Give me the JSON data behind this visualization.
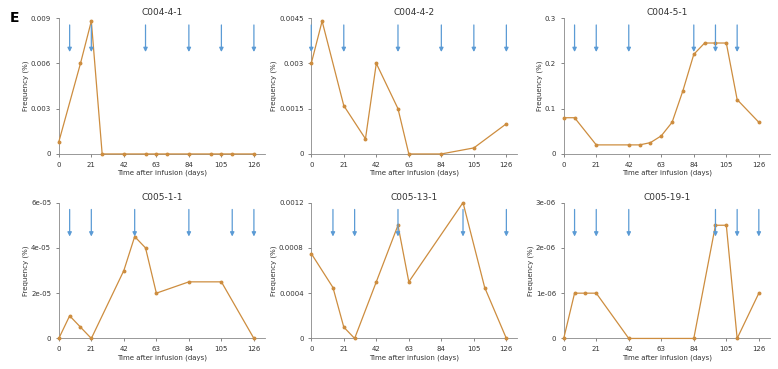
{
  "panels": [
    {
      "title": "C004-4-1",
      "x": [
        0,
        14,
        21,
        28,
        42,
        56,
        63,
        70,
        84,
        98,
        105,
        112,
        126
      ],
      "y": [
        0.0008,
        0.006,
        0.0088,
        0.0,
        0.0,
        0.0,
        0.0,
        0.0,
        0.0,
        0.0,
        0.0,
        0.0,
        0.0
      ],
      "arrows_x": [
        7,
        21,
        56,
        84,
        105,
        126
      ],
      "ylim": [
        0,
        0.009
      ],
      "yticks": [
        0,
        0.003,
        0.006,
        0.009
      ],
      "ytick_labels": [
        "0",
        "0.003",
        "0.006",
        "0.009"
      ]
    },
    {
      "title": "C004-4-2",
      "x": [
        0,
        7,
        21,
        35,
        42,
        56,
        63,
        84,
        105,
        126
      ],
      "y": [
        0.003,
        0.0044,
        0.0016,
        0.0005,
        0.003,
        0.0015,
        0.0,
        0.0,
        0.0002,
        0.001
      ],
      "arrows_x": [
        0,
        21,
        56,
        84,
        105,
        126
      ],
      "ylim": [
        0,
        0.0045
      ],
      "yticks": [
        0,
        0.0015,
        0.003,
        0.0045
      ],
      "ytick_labels": [
        "0",
        "0.0015",
        "0.003",
        "0.0045"
      ]
    },
    {
      "title": "C004-5-1",
      "x": [
        0,
        7,
        21,
        42,
        49,
        56,
        63,
        70,
        77,
        84,
        91,
        98,
        105,
        112,
        126
      ],
      "y": [
        0.08,
        0.08,
        0.02,
        0.02,
        0.02,
        0.025,
        0.04,
        0.07,
        0.14,
        0.22,
        0.245,
        0.245,
        0.245,
        0.12,
        0.07
      ],
      "arrows_x": [
        7,
        21,
        42,
        84,
        98,
        112
      ],
      "ylim": [
        0,
        0.3
      ],
      "yticks": [
        0,
        0.1,
        0.2,
        0.3
      ],
      "ytick_labels": [
        "0",
        "0.1",
        "0.2",
        "0.3"
      ]
    },
    {
      "title": "C005-1-1",
      "x": [
        0,
        7,
        14,
        21,
        42,
        49,
        56,
        63,
        84,
        105,
        126
      ],
      "y": [
        0.0,
        1e-05,
        5e-06,
        0.0,
        3e-05,
        4.5e-05,
        4e-05,
        2e-05,
        2.5e-05,
        2.5e-05,
        0.0
      ],
      "arrows_x": [
        7,
        21,
        49,
        84,
        112,
        126
      ],
      "ylim": [
        0,
        6e-05
      ],
      "yticks": [
        0,
        2e-05,
        4e-05,
        6e-05
      ],
      "ytick_labels": [
        "0",
        "2e-05",
        "4e-05",
        "6e-05"
      ]
    },
    {
      "title": "C005-13-1",
      "x": [
        0,
        14,
        21,
        28,
        42,
        56,
        63,
        98,
        112,
        126
      ],
      "y": [
        0.00075,
        0.00045,
        0.0001,
        0.0,
        0.0005,
        0.001,
        0.0005,
        0.0012,
        0.00045,
        0.0
      ],
      "arrows_x": [
        14,
        28,
        56,
        98,
        126
      ],
      "ylim": [
        0,
        0.0012
      ],
      "yticks": [
        0,
        0.0004,
        0.0008,
        0.0012
      ],
      "ytick_labels": [
        "0",
        "0.0004",
        "0.0008",
        "0.0012"
      ]
    },
    {
      "title": "C005-19-1",
      "x": [
        0,
        7,
        14,
        21,
        42,
        84,
        98,
        105,
        112,
        126
      ],
      "y": [
        0.0,
        1e-06,
        1e-06,
        1e-06,
        0.0,
        0.0,
        2.5e-06,
        2.5e-06,
        0.0,
        1e-06
      ],
      "arrows_x": [
        7,
        21,
        42,
        98,
        112,
        126
      ],
      "ylim": [
        0,
        3e-06
      ],
      "yticks": [
        0,
        1e-06,
        2e-06,
        3e-06
      ],
      "ytick_labels": [
        "0",
        "1e-06",
        "2e-06",
        "3e-06"
      ]
    }
  ],
  "line_color": "#cd8d3f",
  "arrow_color": "#5b9bd5",
  "xlabel": "Time after infusion (days)",
  "ylabel": "Frequency (%)",
  "xticks": [
    0,
    21,
    42,
    63,
    84,
    105,
    126
  ],
  "panel_label": "E",
  "bg_color": "#ffffff"
}
